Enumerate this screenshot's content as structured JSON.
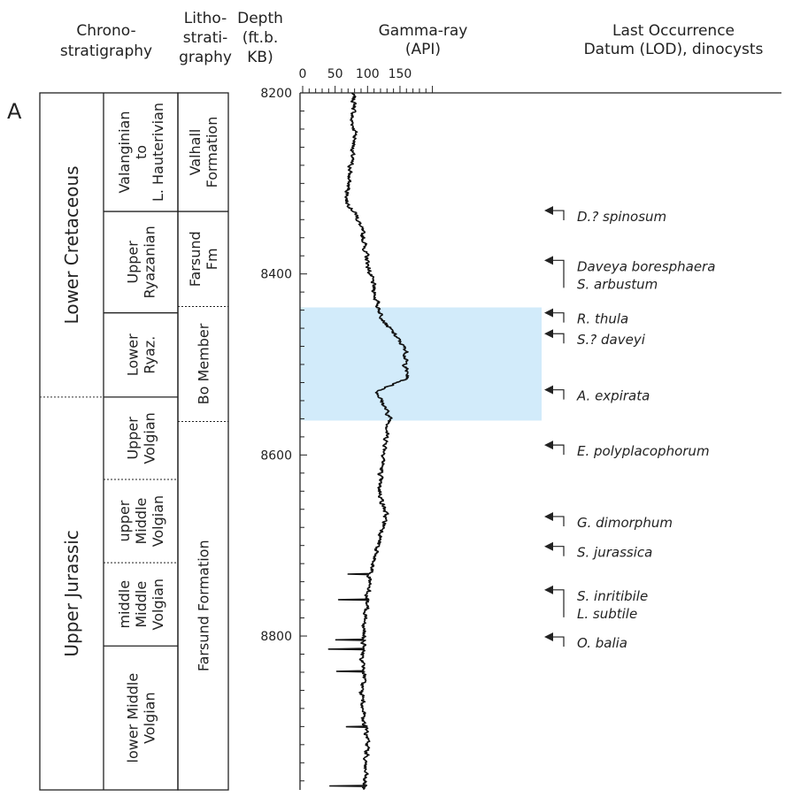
{
  "panel_label": "A",
  "headers": {
    "chrono": [
      "Chrono-",
      "stratigraphy"
    ],
    "litho": [
      "Litho-",
      "strati-",
      "graphy"
    ],
    "depth": [
      "Depth",
      "(ft.b.",
      "KB)"
    ],
    "gamma": [
      "Gamma-ray",
      "(API)"
    ],
    "lod": [
      "Last Occurrence",
      "Datum (LOD), dinocysts"
    ]
  },
  "chrono_series": [
    {
      "label": "Lower Cretaceous",
      "top": 8200,
      "base": 8536
    },
    {
      "label": "Upper Jurassic",
      "top": 8536,
      "base": 8970
    }
  ],
  "chrono_stages": [
    {
      "lines": [
        "Valanginian",
        "to",
        "L. Hauterivian"
      ],
      "top": 8200,
      "base": 8331
    },
    {
      "lines": [
        "Upper",
        "Ryazanian"
      ],
      "top": 8331,
      "base": 8443
    },
    {
      "lines": [
        "Lower",
        "Ryaz."
      ],
      "top": 8443,
      "base": 8536
    },
    {
      "lines": [
        "Upper",
        "Volgian"
      ],
      "top": 8536,
      "base": 8627
    },
    {
      "lines": [
        "upper",
        "Middle",
        "Volgian"
      ],
      "top": 8627,
      "base": 8719
    },
    {
      "lines": [
        "middle",
        "Middle",
        "Volgian"
      ],
      "top": 8719,
      "base": 8811
    },
    {
      "lines": [
        "lower Middle",
        "Volgian"
      ],
      "top": 8811,
      "base": 8970
    }
  ],
  "litho_units": [
    {
      "lines": [
        "Valhall",
        "Formation"
      ],
      "top": 8200,
      "base": 8331
    },
    {
      "lines": [
        "Farsund",
        "Fm"
      ],
      "top": 8331,
      "base": 8436
    },
    {
      "lines": [
        "Bo Member"
      ],
      "top": 8436,
      "base": 8563
    },
    {
      "lines": [
        "Farsund Formation"
      ],
      "top": 8563,
      "base": 8970
    }
  ],
  "lod_markers": [
    {
      "labels": [
        "D.? spinosum"
      ],
      "depth": 8330
    },
    {
      "labels": [
        "Daveya boresphaera",
        "S. arbustum"
      ],
      "depth": 8385
    },
    {
      "labels": [
        "R. thula"
      ],
      "depth": 8443
    },
    {
      "labels": [
        "S.? daveyi"
      ],
      "depth": 8466
    },
    {
      "labels": [
        "A. expirata"
      ],
      "depth": 8528
    },
    {
      "labels": [
        "E. polyplacophorum"
      ],
      "depth": 8589
    },
    {
      "labels": [
        "G. dimorphum"
      ],
      "depth": 8668
    },
    {
      "labels": [
        "S. jurassica"
      ],
      "depth": 8701
    },
    {
      "labels": [
        "S. inritibile",
        "L. subtile"
      ],
      "depth": 8749
    },
    {
      "labels": [
        "O. balia"
      ],
      "depth": 8801
    }
  ],
  "chart_data": {
    "type": "line",
    "title": "",
    "xlabel": "Gamma-ray (API)",
    "ylabel": "Depth (ft.b. KB)",
    "xlim": [
      0,
      200
    ],
    "xticks": [
      0,
      50,
      100,
      150
    ],
    "ylim": [
      8200,
      8970
    ],
    "yticks": [
      8200,
      8400,
      8600,
      8800
    ],
    "highlight": {
      "top": 8437,
      "base": 8562,
      "color": "#d2ebfa"
    },
    "series": [
      {
        "line_color": "#111111",
        "depth": [
          8200,
          8215,
          8230,
          8245,
          8260,
          8275,
          8290,
          8305,
          8320,
          8335,
          8350,
          8365,
          8380,
          8395,
          8410,
          8425,
          8440,
          8455,
          8470,
          8485,
          8500,
          8515,
          8530,
          8545,
          8560,
          8575,
          8590,
          8605,
          8620,
          8635,
          8650,
          8665,
          8680,
          8695,
          8710,
          8725,
          8740,
          8755,
          8770,
          8785,
          8800,
          8815,
          8830,
          8845,
          8860,
          8875,
          8890,
          8905,
          8920,
          8935,
          8950,
          8965
        ],
        "gamma": [
          77,
          80,
          75,
          82,
          78,
          75,
          72,
          70,
          68,
          83,
          90,
          95,
          98,
          102,
          108,
          112,
          118,
          128,
          145,
          160,
          158,
          162,
          115,
          125,
          135,
          130,
          128,
          125,
          120,
          118,
          122,
          128,
          125,
          118,
          112,
          108,
          102,
          100,
          98,
          96,
          95,
          93,
          92,
          95,
          90,
          93,
          92,
          98,
          100,
          98,
          96,
          95
        ]
      }
    ]
  }
}
